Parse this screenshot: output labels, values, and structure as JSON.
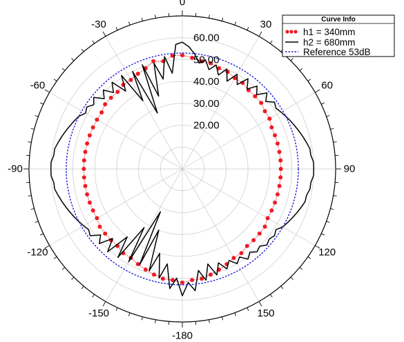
{
  "chart_data": {
    "type": "polar",
    "angle_ticks": [
      {
        "angle": 0,
        "label": "0"
      },
      {
        "angle": 30,
        "label": "30"
      },
      {
        "angle": 60,
        "label": "60"
      },
      {
        "angle": 90,
        "label": "90"
      },
      {
        "angle": 120,
        "label": "120"
      },
      {
        "angle": 150,
        "label": "150"
      },
      {
        "angle": 180,
        "label": "-180"
      },
      {
        "angle": -150,
        "label": "-150"
      },
      {
        "angle": -120,
        "label": "-120"
      },
      {
        "angle": -90,
        "label": "-90"
      },
      {
        "angle": -60,
        "label": "-60"
      },
      {
        "angle": -30,
        "label": "-30"
      }
    ],
    "radial_ticks": [
      {
        "value": 20,
        "label": "20.00"
      },
      {
        "value": 30,
        "label": "30.00"
      },
      {
        "value": 40,
        "label": "40.00"
      },
      {
        "value": 50,
        "label": "50.00"
      },
      {
        "value": 60,
        "label": "60.00"
      }
    ],
    "rlim": [
      0,
      70
    ],
    "angle_range": [
      -180,
      180
    ],
    "zero_direction": "top",
    "angle_direction": "clockwise",
    "grid": true,
    "legend": {
      "title": "Curve Info",
      "placement": "top-right",
      "entries": [
        {
          "label": "h1 = 340mm",
          "color": "#ee1c24",
          "style": "dotted-markers"
        },
        {
          "label": "h2 = 680mm",
          "color": "#000000",
          "style": "solid"
        },
        {
          "label": "Reference 53dB",
          "color": "#1a1adc",
          "style": "dashed"
        }
      ]
    },
    "series": [
      {
        "name": "h1 = 340mm",
        "color": "#ee1c24",
        "points": [
          [
            0,
            52
          ],
          [
            -5,
            52
          ],
          [
            -10,
            50
          ],
          [
            -15,
            51
          ],
          [
            -20,
            49
          ],
          [
            -25,
            48
          ],
          [
            -30,
            47
          ],
          [
            -35,
            47
          ],
          [
            -40,
            46
          ],
          [
            -45,
            46
          ],
          [
            -50,
            46
          ],
          [
            -55,
            45
          ],
          [
            -60,
            45
          ],
          [
            -65,
            45
          ],
          [
            -70,
            45
          ],
          [
            -75,
            45
          ],
          [
            -80,
            45
          ],
          [
            -85,
            45
          ],
          [
            -90,
            45
          ],
          [
            -95,
            45
          ],
          [
            -100,
            45
          ],
          [
            -105,
            45
          ],
          [
            -110,
            45
          ],
          [
            -115,
            45
          ],
          [
            -120,
            45
          ],
          [
            -125,
            46
          ],
          [
            -130,
            46
          ],
          [
            -135,
            46
          ],
          [
            -140,
            46
          ],
          [
            -145,
            47
          ],
          [
            -150,
            47
          ],
          [
            -155,
            48
          ],
          [
            -160,
            49
          ],
          [
            -165,
            50
          ],
          [
            -170,
            51
          ],
          [
            -175,
            51
          ],
          [
            180,
            52
          ],
          [
            175,
            51
          ],
          [
            170,
            51
          ],
          [
            165,
            50
          ],
          [
            160,
            49
          ],
          [
            155,
            48
          ],
          [
            150,
            47
          ],
          [
            145,
            47
          ],
          [
            140,
            46
          ],
          [
            135,
            46
          ],
          [
            130,
            46
          ],
          [
            125,
            46
          ],
          [
            120,
            45
          ],
          [
            115,
            45
          ],
          [
            110,
            45
          ],
          [
            105,
            45
          ],
          [
            100,
            45
          ],
          [
            95,
            45
          ],
          [
            90,
            45
          ],
          [
            85,
            45
          ],
          [
            80,
            45
          ],
          [
            75,
            45
          ],
          [
            70,
            45
          ],
          [
            65,
            45
          ],
          [
            60,
            46
          ],
          [
            55,
            46
          ],
          [
            50,
            47
          ],
          [
            45,
            47
          ],
          [
            40,
            47
          ],
          [
            35,
            48
          ],
          [
            30,
            48
          ],
          [
            25,
            49
          ],
          [
            20,
            49
          ],
          [
            15,
            50
          ],
          [
            10,
            50
          ],
          [
            5,
            51
          ]
        ]
      },
      {
        "name": "h2 = 680mm",
        "color": "#000000",
        "points": [
          [
            0,
            58
          ],
          [
            -3,
            57
          ],
          [
            -6,
            44
          ],
          [
            -9,
            52
          ],
          [
            -12,
            42
          ],
          [
            -15,
            50
          ],
          [
            -18,
            35
          ],
          [
            -21,
            51
          ],
          [
            -24,
            28
          ],
          [
            -27,
            50
          ],
          [
            -30,
            36
          ],
          [
            -33,
            51
          ],
          [
            -36,
            44
          ],
          [
            -39,
            51
          ],
          [
            -42,
            47
          ],
          [
            -45,
            51
          ],
          [
            -48,
            48
          ],
          [
            -51,
            52
          ],
          [
            -54,
            50
          ],
          [
            -57,
            52
          ],
          [
            -60,
            51
          ],
          [
            -63,
            53
          ],
          [
            -66,
            54
          ],
          [
            -69,
            55
          ],
          [
            -72,
            56
          ],
          [
            -75,
            57
          ],
          [
            -78,
            58
          ],
          [
            -81,
            59
          ],
          [
            -84,
            59
          ],
          [
            -87,
            60
          ],
          [
            -90,
            60
          ],
          [
            -93,
            60
          ],
          [
            -96,
            59
          ],
          [
            -99,
            59
          ],
          [
            -102,
            58
          ],
          [
            -105,
            57
          ],
          [
            -108,
            56
          ],
          [
            -111,
            55
          ],
          [
            -114,
            54
          ],
          [
            -117,
            53
          ],
          [
            -120,
            52
          ],
          [
            -123,
            51
          ],
          [
            -126,
            52
          ],
          [
            -129,
            48
          ],
          [
            -132,
            51
          ],
          [
            -135,
            45
          ],
          [
            -138,
            51
          ],
          [
            -141,
            40
          ],
          [
            -144,
            50
          ],
          [
            -147,
            32
          ],
          [
            -150,
            49
          ],
          [
            -153,
            22
          ],
          [
            -156,
            48
          ],
          [
            -159,
            30
          ],
          [
            -162,
            49
          ],
          [
            -165,
            40
          ],
          [
            -168,
            51
          ],
          [
            -171,
            44
          ],
          [
            -174,
            55
          ],
          [
            -177,
            50
          ],
          [
            180,
            58
          ],
          [
            177,
            52
          ],
          [
            174,
            56
          ],
          [
            171,
            47
          ],
          [
            168,
            52
          ],
          [
            165,
            45
          ],
          [
            162,
            51
          ],
          [
            159,
            46
          ],
          [
            156,
            50
          ],
          [
            153,
            47
          ],
          [
            150,
            50
          ],
          [
            147,
            48
          ],
          [
            144,
            51
          ],
          [
            141,
            49
          ],
          [
            138,
            51
          ],
          [
            135,
            50
          ],
          [
            132,
            52
          ],
          [
            129,
            51
          ],
          [
            126,
            52
          ],
          [
            123,
            51
          ],
          [
            120,
            53
          ],
          [
            117,
            54
          ],
          [
            114,
            55
          ],
          [
            111,
            56
          ],
          [
            108,
            57
          ],
          [
            105,
            58
          ],
          [
            102,
            58
          ],
          [
            99,
            59
          ],
          [
            96,
            59
          ],
          [
            93,
            60
          ],
          [
            90,
            60
          ],
          [
            87,
            60
          ],
          [
            84,
            59
          ],
          [
            81,
            59
          ],
          [
            78,
            58
          ],
          [
            75,
            57
          ],
          [
            72,
            56
          ],
          [
            69,
            55
          ],
          [
            66,
            54
          ],
          [
            63,
            53
          ],
          [
            60,
            52
          ],
          [
            57,
            51
          ],
          [
            54,
            52
          ],
          [
            51,
            49
          ],
          [
            48,
            52
          ],
          [
            45,
            48
          ],
          [
            42,
            51
          ],
          [
            39,
            47
          ],
          [
            36,
            51
          ],
          [
            33,
            46
          ],
          [
            30,
            50
          ],
          [
            27,
            45
          ],
          [
            24,
            50
          ],
          [
            21,
            46
          ],
          [
            18,
            50
          ],
          [
            15,
            47
          ],
          [
            12,
            51
          ],
          [
            9,
            49
          ],
          [
            6,
            53
          ],
          [
            3,
            56
          ]
        ]
      },
      {
        "name": "Reference 53dB",
        "color": "#1a1adc",
        "constant_r": 53
      }
    ]
  }
}
